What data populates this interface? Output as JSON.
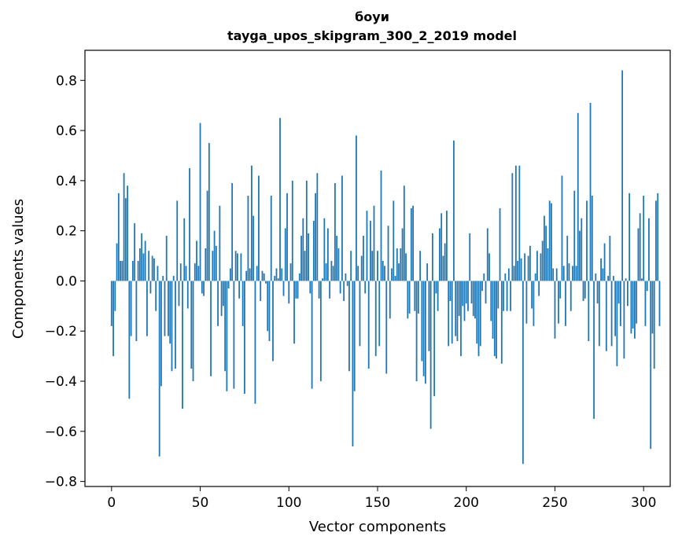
{
  "chart_data": {
    "type": "bar",
    "title": "боуи",
    "subtitle": "tayga_upos_skipgram_300_2_2019 model",
    "xlabel": "Vector components",
    "ylabel": "Components values",
    "xlim": [
      -15,
      315
    ],
    "ylim": [
      -0.82,
      0.92
    ],
    "xticks": [
      0,
      50,
      100,
      150,
      200,
      250,
      300
    ],
    "xtick_labels": [
      "0",
      "50",
      "100",
      "150",
      "200",
      "250",
      "300"
    ],
    "yticks": [
      -0.8,
      -0.6,
      -0.4,
      -0.2,
      0.0,
      0.2,
      0.4,
      0.6,
      0.8
    ],
    "ytick_labels": [
      "−0.8",
      "−0.6",
      "−0.4",
      "−0.2",
      "0.0",
      "0.2",
      "0.4",
      "0.6",
      "0.8"
    ],
    "bar_color": "#1f77b4",
    "grid": false,
    "values": [
      -0.18,
      -0.3,
      -0.12,
      0.15,
      0.35,
      0.08,
      0.08,
      0.43,
      0.33,
      0.38,
      -0.47,
      -0.22,
      0.08,
      0.23,
      -0.24,
      0.08,
      0.13,
      0.19,
      0.11,
      0.16,
      -0.22,
      0.12,
      -0.05,
      0.1,
      0.09,
      -0.12,
      0.06,
      -0.7,
      -0.42,
      0.02,
      -0.22,
      0.18,
      -0.22,
      -0.25,
      -0.36,
      0.02,
      -0.35,
      0.32,
      -0.1,
      0.07,
      -0.51,
      0.25,
      0.06,
      -0.11,
      0.45,
      -0.35,
      -0.4,
      0.07,
      0.16,
      0.06,
      0.63,
      -0.05,
      -0.06,
      0.13,
      0.36,
      0.55,
      -0.38,
      0.12,
      0.2,
      0.14,
      -0.18,
      0.3,
      -0.14,
      -0.1,
      -0.36,
      -0.44,
      -0.03,
      0.05,
      0.39,
      -0.43,
      0.12,
      0.11,
      -0.07,
      0.11,
      -0.18,
      -0.45,
      0.04,
      0.34,
      0.05,
      0.46,
      0.26,
      -0.49,
      0.06,
      0.42,
      -0.08,
      0.04,
      0.03,
      -0.01,
      -0.2,
      -0.24,
      0.34,
      -0.32,
      0.02,
      0.05,
      0.01,
      0.65,
      0.05,
      -0.06,
      0.21,
      0.35,
      -0.09,
      0.07,
      0.4,
      -0.25,
      -0.07,
      -0.07,
      0.03,
      0.18,
      0.25,
      0.12,
      0.4,
      0.19,
      -0.05,
      -0.43,
      0.24,
      0.35,
      0.43,
      -0.07,
      -0.4,
      0.01,
      0.25,
      0.07,
      0.21,
      -0.07,
      0.08,
      0.06,
      0.39,
      0.18,
      0.13,
      -0.05,
      0.42,
      -0.08,
      0.03,
      -0.02,
      -0.36,
      0.12,
      -0.66,
      -0.44,
      0.58,
      0.06,
      -0.26,
      0.1,
      0.18,
      -0.05,
      0.28,
      -0.35,
      0.24,
      0.12,
      0.3,
      -0.3,
      0.12,
      -0.26,
      0.44,
      0.08,
      0.06,
      -0.37,
      0.22,
      -0.15,
      0.05,
      0.32,
      0.02,
      0.13,
      0.07,
      0.13,
      0.21,
      0.38,
      0.11,
      -0.15,
      -0.13,
      0.29,
      0.3,
      -0.12,
      -0.4,
      -0.13,
      0.12,
      -0.32,
      -0.38,
      -0.41,
      0.07,
      -0.28,
      -0.59,
      0.19,
      -0.46,
      -0.05,
      -0.12,
      0.21,
      0.27,
      0.1,
      0.15,
      0.28,
      -0.26,
      -0.08,
      -0.25,
      0.56,
      -0.22,
      -0.24,
      -0.14,
      -0.3,
      -0.1,
      -0.16,
      -0.09,
      -0.12,
      0.19,
      -0.09,
      -0.14,
      -0.15,
      -0.25,
      -0.3,
      -0.26,
      -0.04,
      0.03,
      -0.09,
      0.21,
      0.11,
      -0.16,
      -0.23,
      -0.3,
      -0.31,
      -0.11,
      0.29,
      -0.33,
      -0.12,
      0.03,
      -0.12,
      0.05,
      -0.12,
      0.43,
      0.06,
      0.46,
      0.08,
      0.46,
      0.09,
      -0.73,
      0.11,
      -0.17,
      0.1,
      0.14,
      -0.11,
      -0.18,
      0.03,
      0.12,
      -0.06,
      0.11,
      0.16,
      0.26,
      0.22,
      0.13,
      0.32,
      0.31,
      0.05,
      -0.23,
      0.05,
      -0.17,
      -0.07,
      0.42,
      0.06,
      -0.18,
      0.18,
      0.07,
      -0.12,
      0.06,
      0.36,
      0.06,
      0.67,
      0.2,
      0.25,
      -0.08,
      -0.07,
      0.32,
      -0.24,
      0.71,
      0.34,
      -0.55,
      0.03,
      -0.09,
      -0.26,
      0.09,
      0.05,
      0.15,
      -0.28,
      0.02,
      0.18,
      -0.26,
      0.02,
      -0.22,
      -0.34,
      -0.09,
      -0.18,
      0.84,
      -0.31,
      0.01,
      -0.1,
      0.35,
      -0.21,
      -0.19,
      -0.23,
      -0.17,
      0.21,
      0.27,
      0.01,
      0.34,
      -0.18,
      -0.04,
      0.25,
      -0.67,
      -0.21,
      -0.35,
      0.32,
      0.35,
      -0.18
    ]
  }
}
